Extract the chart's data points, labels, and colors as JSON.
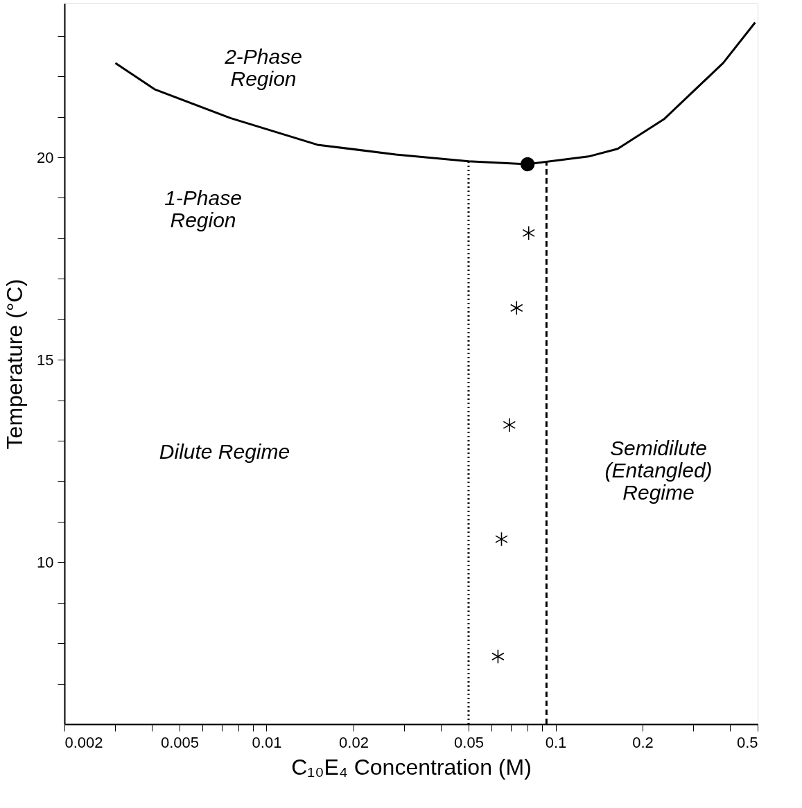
{
  "chart_data": {
    "type": "line",
    "xlabel": "C₁₀E₄ Concentration (M)",
    "ylabel": "Temperature (°C)",
    "log": "x",
    "grid": false,
    "xlim": [
      0.002,
      0.5
    ],
    "ylim": [
      6,
      23.8
    ],
    "xticks": [
      0.002,
      {
        "value": 0.003,
        "label": null
      },
      {
        "value": 0.004,
        "label": null
      },
      0.005,
      {
        "value": 0.006,
        "label": null
      },
      {
        "value": 0.007,
        "label": null
      },
      {
        "value": 0.008,
        "label": null
      },
      {
        "value": 0.009,
        "label": null
      },
      0.01,
      0.02,
      {
        "value": 0.03,
        "label": null
      },
      {
        "value": 0.04,
        "label": null
      },
      0.05,
      {
        "value": 0.06,
        "label": null
      },
      {
        "value": 0.07,
        "label": null
      },
      {
        "value": 0.08,
        "label": null
      },
      {
        "value": 0.09,
        "label": null
      },
      0.1,
      0.2,
      {
        "value": 0.3,
        "label": null
      },
      {
        "value": 0.4,
        "label": null
      },
      0.5
    ],
    "yticks": [
      {
        "value": 7,
        "label": null
      },
      {
        "value": 8,
        "label": null
      },
      {
        "value": 9,
        "label": null
      },
      10,
      {
        "value": 11,
        "label": null
      },
      {
        "value": 12,
        "label": null
      },
      {
        "value": 13,
        "label": null
      },
      {
        "value": 14,
        "label": null
      },
      15,
      {
        "value": 16,
        "label": null
      },
      {
        "value": 17,
        "label": null
      },
      {
        "value": 18,
        "label": null
      },
      {
        "value": 19,
        "label": null
      },
      20,
      {
        "value": 21,
        "label": null
      },
      {
        "value": 22,
        "label": null
      },
      {
        "value": 23,
        "label": null
      }
    ],
    "series": [
      {
        "color": "#000000",
        "line_style": "solid",
        "marker": "none",
        "x": [
          0.003,
          0.0041,
          0.0075,
          0.015,
          0.028,
          0.05,
          0.08,
          0.13,
          0.164,
          0.237,
          0.38,
          0.49
        ],
        "values": [
          22.33,
          21.68,
          20.97,
          20.31,
          20.07,
          19.9,
          19.83,
          20.02,
          20.21,
          20.94,
          22.33,
          23.33
        ]
      },
      {
        "type": "scatter",
        "color": "#000000",
        "marker": "circle",
        "x": [
          0.08
        ],
        "values": [
          19.83
        ]
      },
      {
        "type": "scatter",
        "color": "#000000",
        "marker": "cross",
        "x": [
          0.0807,
          0.0733,
          0.0692,
          0.065,
          0.0632
        ],
        "values": [
          18.13,
          16.28,
          13.39,
          10.57,
          7.67
        ]
      }
    ],
    "ref_lines": [
      {
        "axis": "x",
        "value": 0.05,
        "line_style": "dotted",
        "color": "#000000"
      },
      {
        "axis": "x",
        "value": 0.093,
        "line_style": "dashed",
        "color": "#000000"
      }
    ],
    "annotations": [
      "2-Phase\nRegion",
      "1-Phase\nRegion",
      "Dilute Regime",
      "Semidilute\n(Entangled)\nRegime"
    ]
  }
}
